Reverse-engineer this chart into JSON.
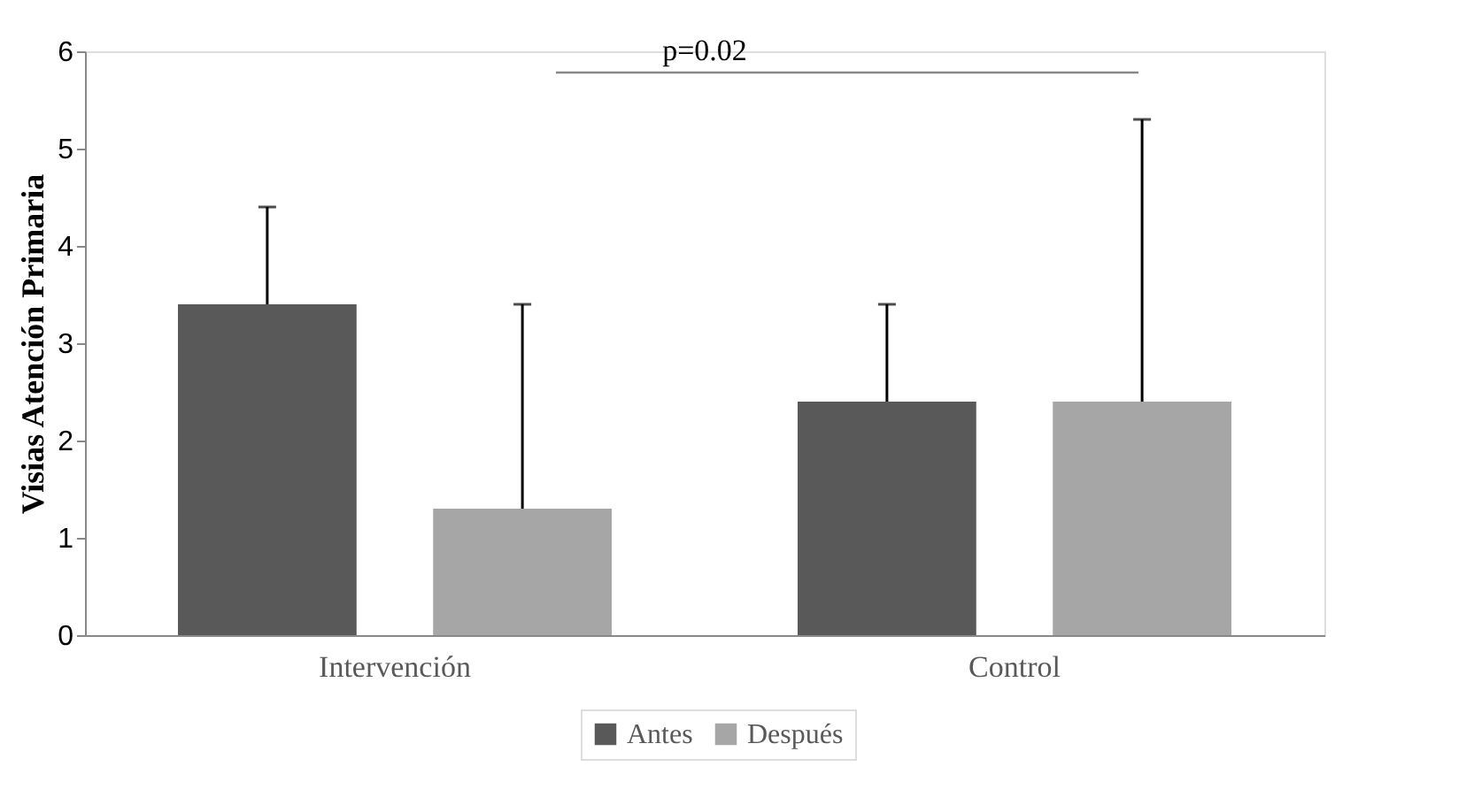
{
  "chart_data": {
    "type": "bar",
    "ylabel": "Visias Atención Primaria",
    "categories": [
      "Intervención",
      "Control"
    ],
    "series": [
      {
        "name": "Antes",
        "color": "#595959",
        "values": [
          3.4,
          2.4
        ],
        "errors": [
          [
            3.4,
            4.4
          ],
          [
            2.4,
            3.4
          ]
        ]
      },
      {
        "name": "Después",
        "color": "#a6a6a6",
        "values": [
          1.3,
          2.4
        ],
        "errors": [
          [
            1.3,
            3.4
          ],
          [
            2.4,
            5.3
          ]
        ]
      }
    ],
    "ylim": [
      0,
      6
    ],
    "yticks": [
      0,
      1,
      2,
      3,
      4,
      5,
      6
    ],
    "grid": false,
    "legend": "bottom",
    "annotations": [
      "p=0.02"
    ]
  }
}
